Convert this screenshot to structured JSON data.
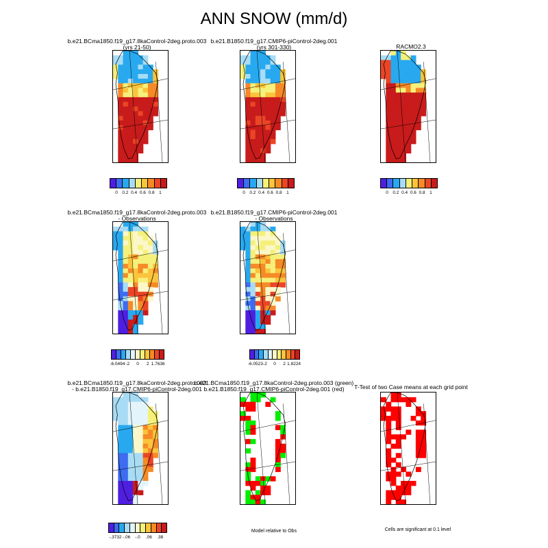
{
  "title": "ANN SNOW (mm/d)",
  "panels": [
    {
      "id": "p1",
      "title1": "b.e21.BCma1850.f19_g17.8kaControl-2deg.proto.003",
      "title2": "(yrs 21-50)",
      "palette": "abs",
      "pattern": "abs"
    },
    {
      "id": "p2",
      "title1": "b.e21.B1850.f19_g17.CMIP6-piControl-2deg.001",
      "title2": "(yrs 301-330)",
      "palette": "abs",
      "pattern": "abs2"
    },
    {
      "id": "p3",
      "title1": "RACMO2.3",
      "title2": "",
      "palette": "abs",
      "pattern": "racmo"
    },
    {
      "id": "p4",
      "title1": "b.e21.BCma1850.f19_g17.8kaControl-2deg.proto.003",
      "title2": "- Observations",
      "palette": "diff",
      "pattern": "bias"
    },
    {
      "id": "p5",
      "title1": "b.e21.B1850.f19_g17.CMIP6-piControl-2deg.001",
      "title2": "- Observations",
      "palette": "diff",
      "pattern": "bias2"
    },
    {
      "id": "p6",
      "title1": "b.e21.BCma1850.f19_g17.8kaControl-2deg.proto.003",
      "title2": "- b.e21.B1850.f19_g17.CMIP6-piControl-2deg.001",
      "palette": "diff",
      "pattern": "casediff"
    },
    {
      "id": "p7",
      "title1": "b.e21.BCma1850.f19_g17.8kaControl-2deg.proto.003 (green)",
      "title2": "b.e21.B1850.f19_g17.CMIP6-piControl-2deg.001 (red)",
      "palette": "rg",
      "pattern": "rg"
    },
    {
      "id": "p8",
      "title1": "T-Test of two Case means at each grid point",
      "title2": "",
      "palette": "red",
      "pattern": "ttest"
    }
  ],
  "colorbars": [
    {
      "id": "cb1",
      "labels": [
        "0",
        "0.2",
        "0.4",
        "0.6",
        "0.8",
        "1"
      ]
    },
    {
      "id": "cb2",
      "labels": [
        "0",
        "0.2",
        "0.4",
        "0.6",
        "0.8",
        "1"
      ]
    },
    {
      "id": "cb3",
      "labels": [
        "0",
        "0.2",
        "0.4",
        "0.6",
        "0.8",
        "1"
      ]
    },
    {
      "id": "cb4",
      "labels": [
        "-6.0494",
        "-2",
        "0",
        "2",
        "1.7636"
      ]
    },
    {
      "id": "cb5",
      "labels": [
        "-6.0523",
        "-2",
        "0",
        "2",
        "1.8224"
      ]
    },
    {
      "id": "cb6",
      "labels": [
        "-.3732",
        "-.06",
        "-.0",
        ".06",
        ".38"
      ]
    }
  ],
  "notes": {
    "model_relative": "Model relative to Obs",
    "significance": "Cells are significant at 0.1 level"
  },
  "palettes": {
    "abs": [
      "#4f1fe0",
      "#3d6cf0",
      "#28a9ef",
      "#a8dcf5",
      "#f5f07a",
      "#fbc43c",
      "#f58a26",
      "#ea4526",
      "#c81b1b"
    ],
    "diff": [
      "#4f1fe0",
      "#3d6cf0",
      "#28a9ef",
      "#a8dcf5",
      "#e4f4fb",
      "#fbf7c8",
      "#f5f07a",
      "#fbc43c",
      "#f58a26",
      "#ea4526",
      "#c81b1b"
    ],
    "rg": [
      "#ff0000",
      "#00ee00"
    ],
    "red": [
      "#ff0000"
    ]
  },
  "chart_data": {
    "type": "heatmap",
    "title": "ANN SNOW (mm/d)",
    "region": "Greenland",
    "panels": [
      {
        "name": "b.e21.BCma1850.f19_g17.8kaControl-2deg.proto.003 (yrs 21-50)",
        "scale": [
          0,
          1
        ],
        "description": "low snowfall (0-0.2) north, high (>1) south and southeast"
      },
      {
        "name": "b.e21.B1850.f19_g17.CMIP6-piControl-2deg.001 (yrs 301-330)",
        "scale": [
          0,
          1
        ],
        "description": "low snowfall north, high south"
      },
      {
        "name": "RACMO2.3",
        "scale": [
          0,
          1
        ],
        "description": "low snowfall north/interior, high south and west margin"
      },
      {
        "name": "8kaControl - Observations",
        "scale": [
          -6.0494,
          1.7636
        ],
        "description": "positive bias interior, negative bias southern margins"
      },
      {
        "name": "CMIP6-piControl - Observations",
        "scale": [
          -6.0523,
          1.8224
        ],
        "description": "positive bias interior, negative bias southern margins"
      },
      {
        "name": "8kaControl - CMIP6-piControl",
        "scale": [
          -0.3732,
          0.38
        ],
        "description": "negative southwest, positive east"
      },
      {
        "name": "Model relative to Obs",
        "legend": [
          "green: 8kaControl",
          "red: CMIP6-piControl"
        ]
      },
      {
        "name": "T-Test significance",
        "legend": [
          "red: significant at 0.1 level"
        ]
      }
    ]
  }
}
